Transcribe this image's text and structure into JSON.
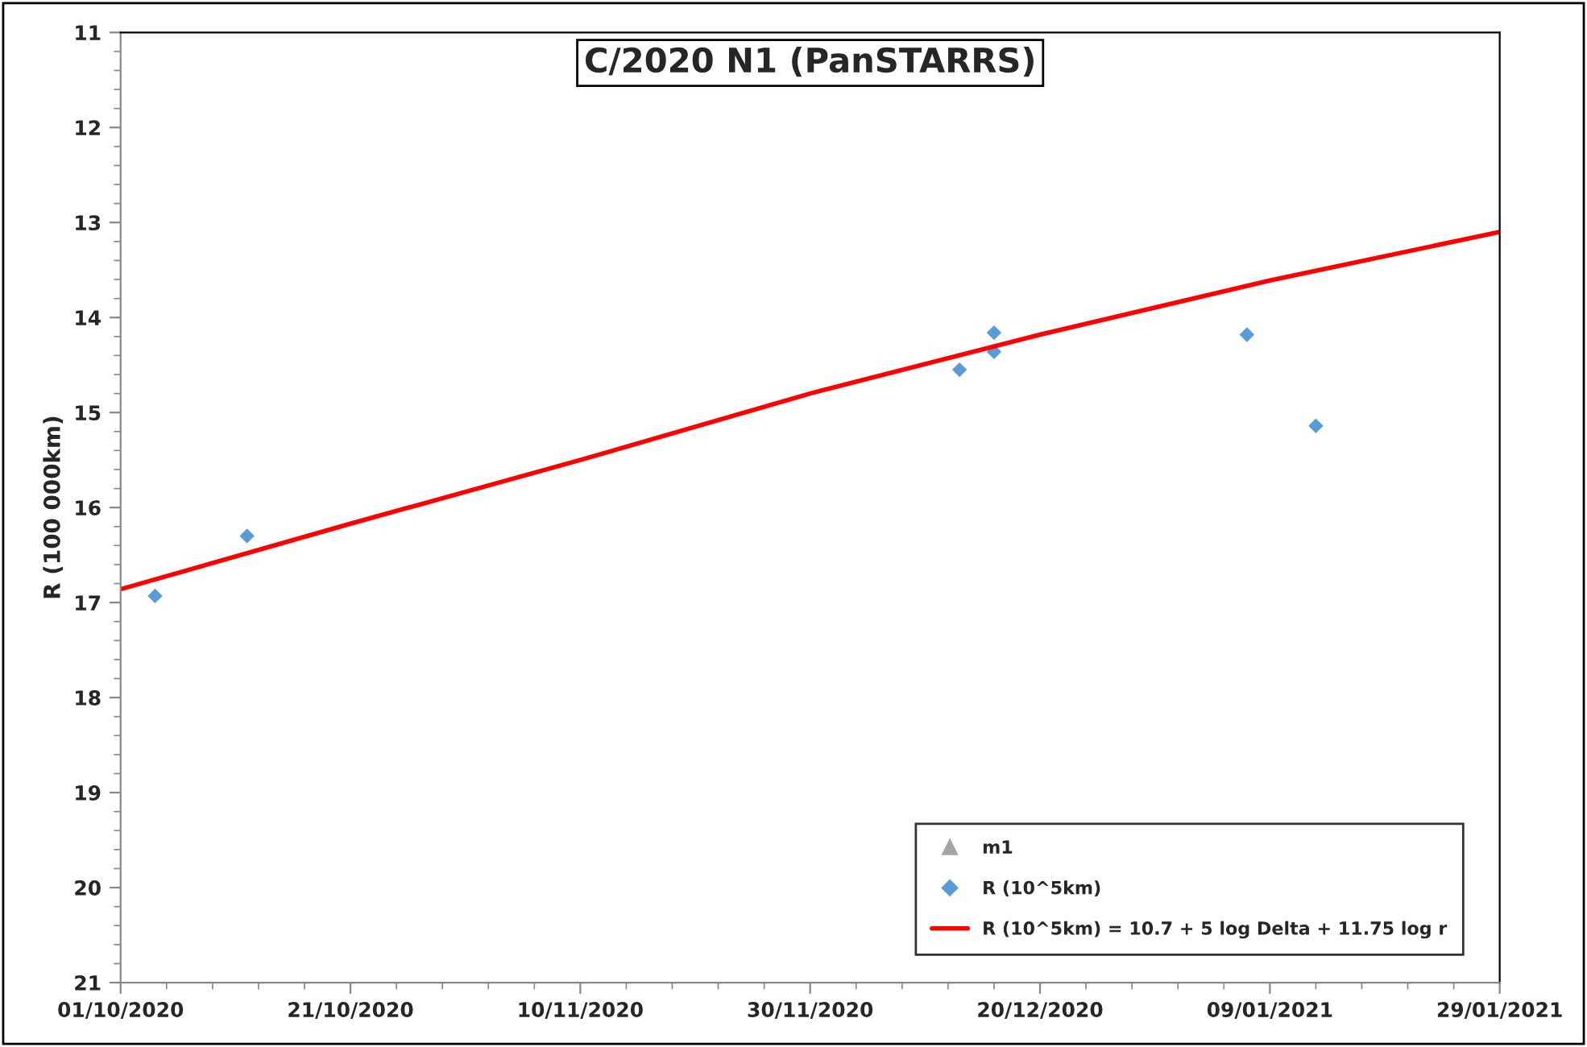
{
  "chart_data": {
    "type": "scatter",
    "title": "C/2020 N1 (PanSTARRS)",
    "ylabel": "R (100 000km)",
    "series": [
      {
        "name": "m1",
        "color": "#a5a5a5",
        "marker": "triangle"
      },
      {
        "name": "R (10^5km)",
        "color": "#5b9bd5",
        "marker": "diamond",
        "x": [
          "2020-10-04",
          "2020-10-12",
          "2020-12-13",
          "2020-12-16",
          "2020-12-16",
          "2021-01-07",
          "2021-01-13"
        ],
        "values": [
          16.93,
          16.3,
          14.55,
          14.36,
          14.16,
          14.18,
          15.14
        ]
      },
      {
        "name": "R (10^5km) = 10.7 + 5 log Delta + 11.75 log r",
        "type": "line",
        "color": "#ff0000",
        "marker": "none",
        "line_style": "solid",
        "x": [
          "2020-10-01",
          "2020-10-21",
          "2020-11-10",
          "2020-11-30",
          "2020-12-20",
          "2021-01-09",
          "2021-01-29"
        ],
        "values": [
          16.86,
          16.17,
          15.5,
          14.8,
          14.18,
          13.61,
          13.1
        ]
      }
    ],
    "xlim": [
      "2020-10-01",
      "2021-01-29"
    ],
    "xticks": [
      {
        "value": "2020-10-01",
        "label": "01/10/2020"
      },
      {
        "value": "2020-10-21",
        "label": "21/10/2020"
      },
      {
        "value": "2020-11-10",
        "label": "10/11/2020"
      },
      {
        "value": "2020-11-30",
        "label": "30/11/2020"
      },
      {
        "value": "2020-12-20",
        "label": "20/12/2020"
      },
      {
        "value": "2021-01-09",
        "label": "09/01/2021"
      },
      {
        "value": "2021-01-29",
        "label": "29/01/2021"
      }
    ],
    "ylim": [
      21,
      11
    ],
    "yticks": [
      11,
      12,
      13,
      14,
      15,
      16,
      17,
      18,
      19,
      20,
      21
    ],
    "grid": false,
    "legend": "bottom right"
  }
}
